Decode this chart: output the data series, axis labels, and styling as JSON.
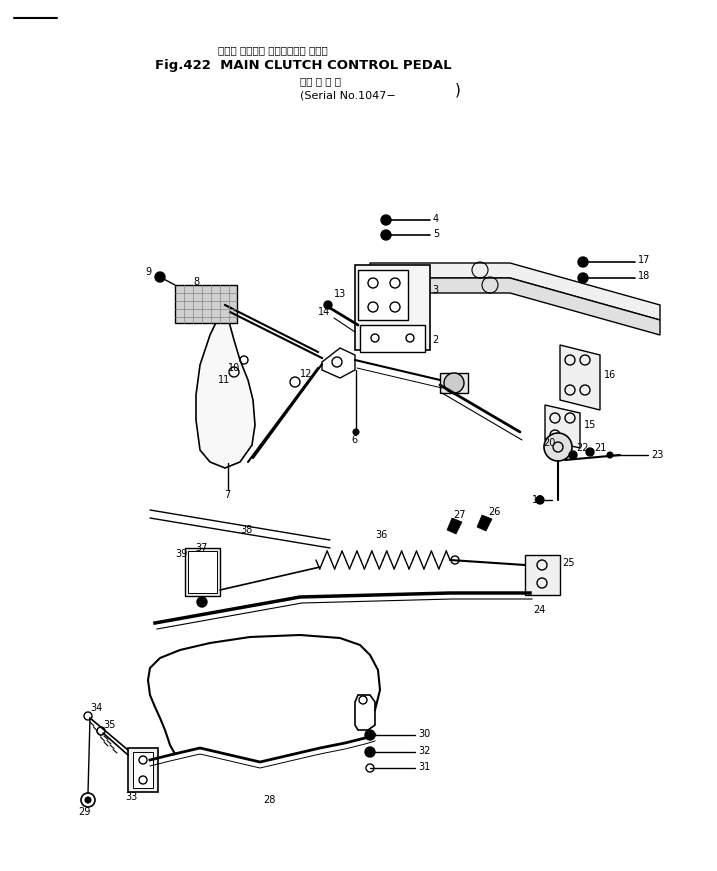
{
  "bg_color": "#ffffff",
  "fig_width": 7.17,
  "fig_height": 8.71,
  "dpi": 100,
  "title_jp": "メイン クラッチ コントロール ペダル",
  "title_en": "Fig.422  MAIN CLUTCH CONTROL PEDAL",
  "sub_jp": "（適 用 号 機",
  "sub_en": "(Serial No.1047−",
  "sub_close": ")"
}
